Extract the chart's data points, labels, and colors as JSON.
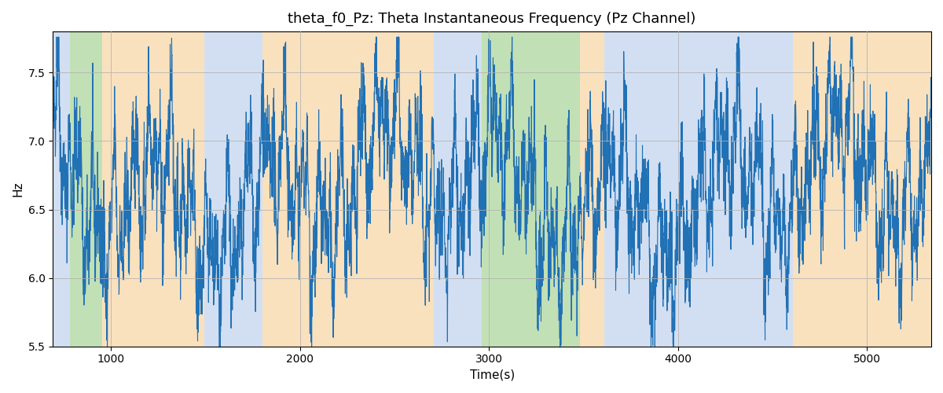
{
  "title": "theta_f0_Pz: Theta Instantaneous Frequency (Pz Channel)",
  "xlabel": "Time(s)",
  "ylabel": "Hz",
  "ylim": [
    5.5,
    7.8
  ],
  "xlim": [
    693,
    5340
  ],
  "line_color": "#2171b5",
  "line_width": 0.8,
  "bands": [
    {
      "xmin": 693,
      "xmax": 785,
      "color": "#aec6e8",
      "alpha": 0.55
    },
    {
      "xmin": 785,
      "xmax": 955,
      "color": "#90c878",
      "alpha": 0.55
    },
    {
      "xmin": 955,
      "xmax": 1495,
      "color": "#f5c98a",
      "alpha": 0.55
    },
    {
      "xmin": 1495,
      "xmax": 1800,
      "color": "#aec6e8",
      "alpha": 0.55
    },
    {
      "xmin": 1800,
      "xmax": 2710,
      "color": "#f5c98a",
      "alpha": 0.55
    },
    {
      "xmin": 2710,
      "xmax": 2960,
      "color": "#aec6e8",
      "alpha": 0.55
    },
    {
      "xmin": 2960,
      "xmax": 3480,
      "color": "#90c878",
      "alpha": 0.55
    },
    {
      "xmin": 3480,
      "xmax": 3610,
      "color": "#f5c98a",
      "alpha": 0.55
    },
    {
      "xmin": 3610,
      "xmax": 4610,
      "color": "#aec6e8",
      "alpha": 0.55
    },
    {
      "xmin": 4610,
      "xmax": 5340,
      "color": "#f5c98a",
      "alpha": 0.55
    }
  ],
  "seed": 42,
  "n_points": 4600,
  "time_start": 693,
  "time_end": 5340,
  "xticks": [
    1000,
    2000,
    3000,
    4000,
    5000
  ],
  "yticks": [
    5.5,
    6.0,
    6.5,
    7.0,
    7.5
  ]
}
